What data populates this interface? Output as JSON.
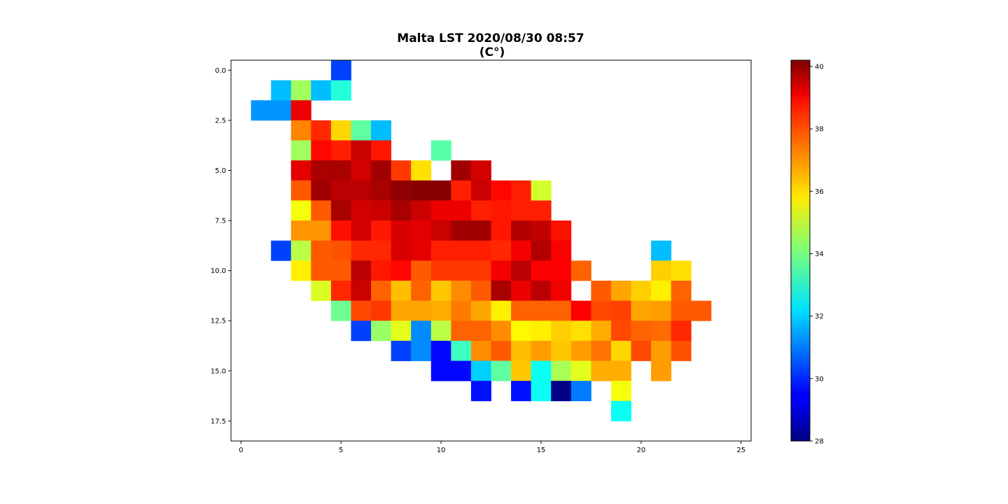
{
  "chart_data": {
    "type": "heatmap",
    "title_line1": "Malta LST 2020/08/30 08:57",
    "title_line2": "(C°)",
    "xlim": [
      -0.5,
      25.5
    ],
    "ylim": [
      18.5,
      -0.5
    ],
    "xticks": [
      0,
      5,
      10,
      15,
      20,
      25
    ],
    "xtick_labels": [
      "0",
      "5",
      "10",
      "15",
      "20",
      "25"
    ],
    "yticks": [
      0.0,
      2.5,
      5.0,
      7.5,
      10.0,
      12.5,
      15.0,
      17.5
    ],
    "ytick_labels": [
      "0.0",
      "2.5",
      "5.0",
      "7.5",
      "10.0",
      "12.5",
      "15.0",
      "17.5"
    ],
    "colorbar": {
      "colormap": "jet",
      "vmin": 28.0,
      "vmax": 40.2,
      "ticks": [
        28,
        30,
        32,
        34,
        36,
        38,
        40
      ],
      "tick_labels": [
        "28",
        "30",
        "32",
        "34",
        "36",
        "38",
        "40"
      ]
    },
    "grid": [
      [
        null,
        null,
        null,
        null,
        null,
        30.3,
        null,
        null,
        null,
        null,
        null,
        null,
        null,
        null,
        null,
        null,
        null,
        null,
        null,
        null,
        null,
        null,
        null,
        null,
        null
      ],
      [
        null,
        null,
        31.8,
        34.5,
        31.8,
        33.0,
        null,
        null,
        null,
        null,
        null,
        null,
        null,
        null,
        null,
        null,
        null,
        null,
        null,
        null,
        null,
        null,
        null,
        null,
        null
      ],
      [
        null,
        31.3,
        31.3,
        38.9,
        null,
        null,
        null,
        null,
        null,
        null,
        null,
        null,
        null,
        null,
        null,
        null,
        null,
        null,
        null,
        null,
        null,
        null,
        null,
        null,
        null
      ],
      [
        null,
        null,
        null,
        37.1,
        38.2,
        36.1,
        33.7,
        31.8,
        null,
        null,
        null,
        null,
        null,
        null,
        null,
        null,
        null,
        null,
        null,
        null,
        null,
        null,
        null,
        null,
        null
      ],
      [
        null,
        null,
        null,
        34.5,
        38.6,
        38.3,
        39.3,
        38.4,
        null,
        null,
        33.6,
        null,
        null,
        null,
        null,
        null,
        null,
        null,
        null,
        null,
        null,
        null,
        null,
        null,
        null
      ],
      [
        null,
        null,
        null,
        39.0,
        39.7,
        39.7,
        39.2,
        39.8,
        38.0,
        36.0,
        null,
        39.8,
        39.2,
        null,
        null,
        null,
        null,
        null,
        null,
        null,
        null,
        null,
        null,
        null,
        null
      ],
      [
        null,
        null,
        null,
        37.6,
        39.8,
        39.5,
        39.5,
        39.7,
        40.0,
        40.1,
        40.1,
        38.3,
        39.3,
        38.6,
        38.3,
        35.1,
        null,
        null,
        null,
        null,
        null,
        null,
        null,
        null,
        null
      ],
      [
        null,
        null,
        null,
        35.5,
        37.6,
        39.7,
        39.2,
        39.3,
        39.7,
        39.3,
        38.9,
        38.9,
        38.3,
        38.4,
        38.3,
        38.3,
        null,
        null,
        null,
        null,
        null,
        null,
        null,
        null,
        null
      ],
      [
        null,
        null,
        null,
        36.9,
        36.9,
        38.5,
        39.2,
        38.4,
        39.1,
        39.0,
        39.3,
        39.8,
        39.8,
        38.4,
        39.6,
        39.4,
        38.5,
        null,
        null,
        null,
        null,
        null,
        null,
        null,
        null
      ],
      [
        null,
        null,
        30.3,
        34.8,
        37.6,
        37.7,
        38.2,
        38.2,
        39.1,
        39.0,
        38.3,
        38.3,
        38.3,
        38.2,
        38.8,
        39.6,
        38.7,
        null,
        null,
        null,
        null,
        31.8,
        null,
        null,
        null
      ],
      [
        null,
        null,
        null,
        35.8,
        37.6,
        37.6,
        39.5,
        38.4,
        38.6,
        37.6,
        38.0,
        38.0,
        38.0,
        38.8,
        39.5,
        38.7,
        38.7,
        37.5,
        null,
        null,
        null,
        36.2,
        36.0,
        null,
        null
      ],
      [
        null,
        null,
        null,
        null,
        35.2,
        38.2,
        39.3,
        37.5,
        36.4,
        37.5,
        36.3,
        37.0,
        37.6,
        39.7,
        38.9,
        39.5,
        38.8,
        null,
        37.6,
        36.7,
        36.2,
        35.8,
        37.5,
        null,
        null
      ],
      [
        null,
        null,
        null,
        null,
        null,
        33.9,
        37.8,
        38.0,
        36.7,
        36.7,
        36.6,
        37.2,
        36.7,
        35.8,
        37.5,
        37.5,
        37.5,
        38.7,
        37.8,
        37.9,
        36.7,
        36.8,
        37.6,
        37.6,
        null
      ],
      [
        null,
        null,
        null,
        null,
        null,
        null,
        30.3,
        34.4,
        35.3,
        31.2,
        34.8,
        37.5,
        37.5,
        37.0,
        35.7,
        35.8,
        36.2,
        36.0,
        36.6,
        37.8,
        37.5,
        37.4,
        38.2,
        null,
        null
      ],
      [
        null,
        null,
        null,
        null,
        null,
        null,
        null,
        null,
        30.3,
        31.2,
        29.6,
        33.3,
        37.0,
        37.6,
        36.4,
        36.8,
        36.3,
        36.8,
        37.3,
        36.1,
        37.8,
        36.8,
        37.7,
        null,
        null
      ],
      [
        null,
        null,
        null,
        null,
        null,
        null,
        null,
        null,
        null,
        null,
        29.6,
        29.6,
        32.0,
        33.7,
        36.3,
        32.7,
        34.6,
        35.3,
        36.6,
        36.6,
        null,
        36.8,
        null,
        null,
        null
      ],
      [
        null,
        null,
        null,
        null,
        null,
        null,
        null,
        null,
        null,
        null,
        null,
        null,
        29.7,
        null,
        29.7,
        32.7,
        28.1,
        31.0,
        null,
        35.5,
        null,
        null,
        null,
        null,
        null
      ],
      [
        null,
        null,
        null,
        null,
        null,
        null,
        null,
        null,
        null,
        null,
        null,
        null,
        null,
        null,
        null,
        null,
        null,
        null,
        null,
        32.7,
        null,
        null,
        null,
        null,
        null
      ]
    ]
  }
}
